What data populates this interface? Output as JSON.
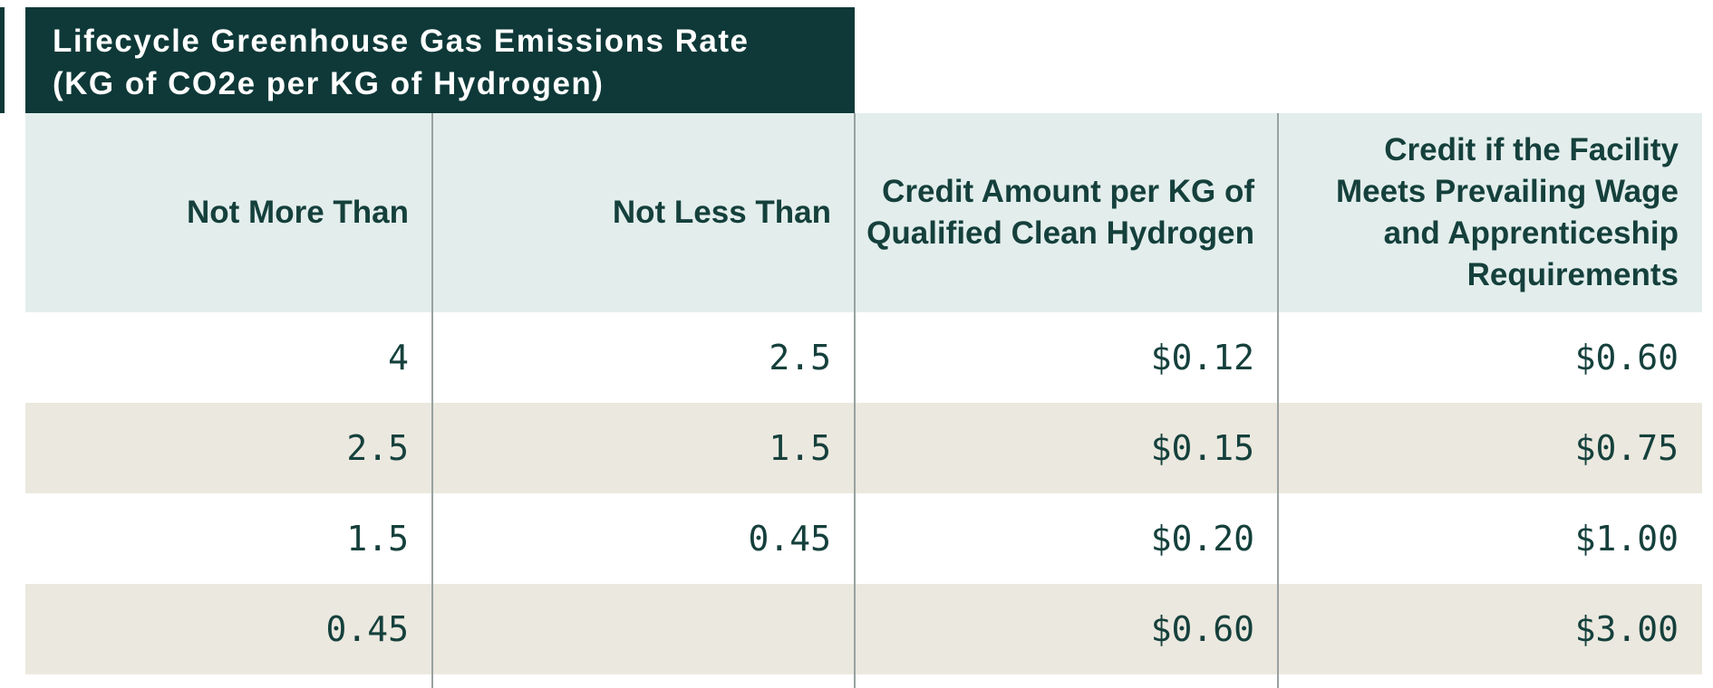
{
  "banner": {
    "line1": "Lifecycle Greenhouse Gas Emissions Rate",
    "line2": "(KG of CO2e per KG of Hydrogen)"
  },
  "header_lines": [
    [
      "Not More Than"
    ],
    [
      "Not Less Than"
    ],
    [
      "Credit Amount per KG of",
      "Qualified Clean Hydrogen"
    ],
    [
      "Credit if the Facility",
      "Meets Prevailing Wage",
      "and Apprenticeship",
      "Requirements"
    ]
  ],
  "chart_data": {
    "type": "table",
    "title": "Lifecycle Greenhouse Gas Emissions Rate (KG of CO2e per KG of Hydrogen)",
    "columns": [
      "Not More Than",
      "Not Less Than",
      "Credit Amount per KG of Qualified Clean Hydrogen",
      "Credit if the Facility Meets Prevailing Wage and Apprenticeship Requirements"
    ],
    "rows": [
      [
        "4",
        "2.5",
        "$0.12",
        "$0.60"
      ],
      [
        "2.5",
        "1.5",
        "$0.15",
        "$0.75"
      ],
      [
        "1.5",
        "0.45",
        "$0.20",
        "$1.00"
      ],
      [
        "0.45",
        "",
        "$0.60",
        "$3.00"
      ]
    ],
    "layout_hints": {
      "row_striping": [
        "white",
        "beige",
        "white",
        "beige"
      ],
      "text_alignment": "right",
      "title_spans_columns": [
        1,
        2
      ]
    }
  },
  "colors": {
    "banner_bg": "#0e3938",
    "banner_text": "#ffffff",
    "header_row_bg": "#e3eeec",
    "stripe_bg": "#ebe8df",
    "text": "#15403c",
    "divider": "#98a2a0"
  }
}
